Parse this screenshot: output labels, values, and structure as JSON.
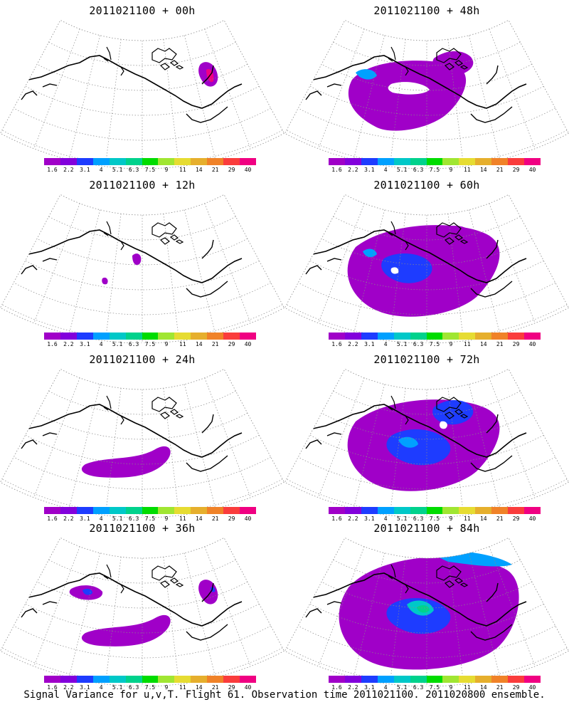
{
  "figure": {
    "footer": "Signal Variance for u,v,T. Flight 61. Observation time 2011021100. 2011020800 ensemble."
  },
  "colorbar": {
    "labels": [
      "1.6",
      "2.2",
      "3.1",
      "4",
      "5.1",
      "6.3",
      "7.5",
      "9",
      "11",
      "14",
      "21",
      "29",
      "40"
    ],
    "colors": [
      "#a000c8",
      "#8200dc",
      "#1e3cff",
      "#00a0ff",
      "#00c8c8",
      "#00d28c",
      "#00dc00",
      "#a0e632",
      "#e6dc32",
      "#e6af2d",
      "#f08228",
      "#fa3c3c",
      "#f00082"
    ]
  },
  "panels": [
    {
      "title": "2011021100 + 00h",
      "lead": "00h",
      "intensity": 0
    },
    {
      "title": "2011021100 + 48h",
      "lead": "48h",
      "intensity": 4
    },
    {
      "title": "2011021100 + 12h",
      "lead": "12h",
      "intensity": 1
    },
    {
      "title": "2011021100 + 60h",
      "lead": "60h",
      "intensity": 5
    },
    {
      "title": "2011021100 + 24h",
      "lead": "24h",
      "intensity": 2
    },
    {
      "title": "2011021100 + 72h",
      "lead": "72h",
      "intensity": 6
    },
    {
      "title": "2011021100 + 36h",
      "lead": "36h",
      "intensity": 3
    },
    {
      "title": "2011021100 + 84h",
      "lead": "84h",
      "intensity": 7
    }
  ]
}
